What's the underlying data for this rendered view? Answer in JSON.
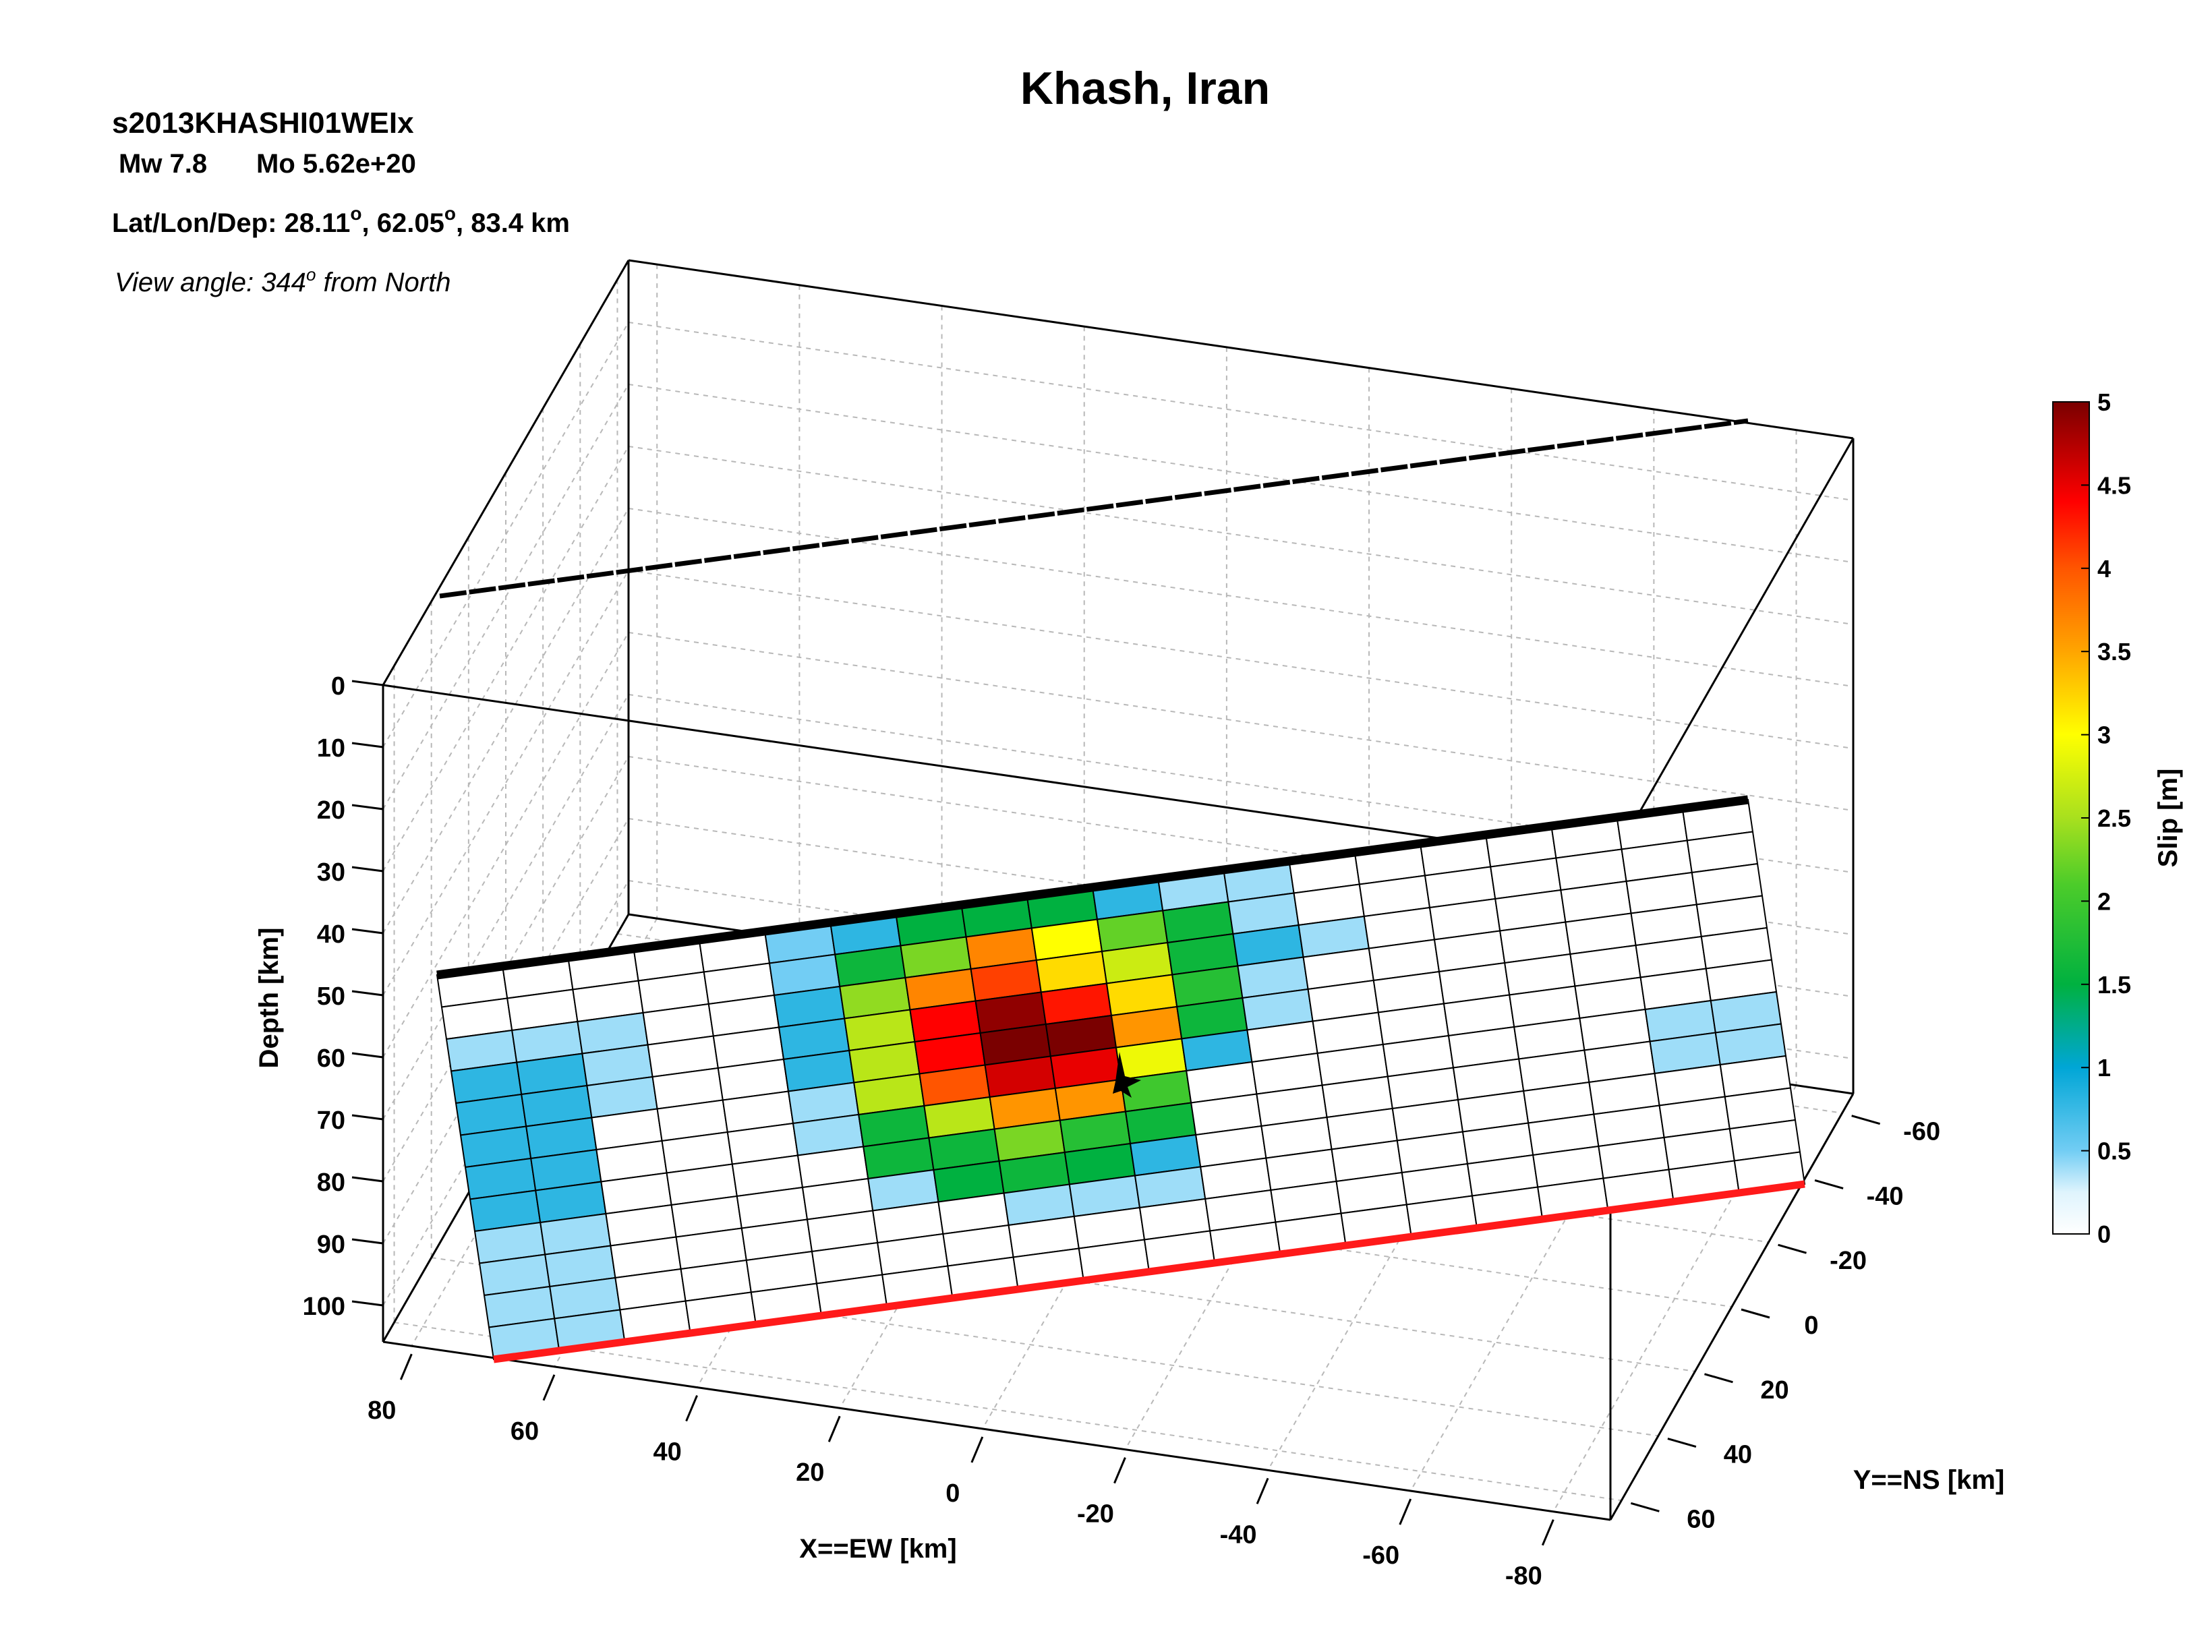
{
  "header": {
    "title": "Khash, Iran",
    "event_id": "s2013KHASHI01WEIx",
    "mw": "Mw 7.8",
    "mo": "Mo 5.62e+20",
    "latlon_prefix": "Lat/Lon/Dep: 28.11",
    "latlon_mid": ", 62.05",
    "latlon_suffix": ", 83.4 km",
    "degree": "o",
    "view_prefix": "View angle: 344",
    "view_suffix": " from North"
  },
  "chart_data": {
    "type": "heatmap",
    "title": "Khash, Iran",
    "z_label": "Depth [km]",
    "x_label": "X==EW [km]",
    "y_label": "Y==NS [km]",
    "colorbar_label": "Slip [m]",
    "depth_ticks": [
      "0",
      "10",
      "20",
      "30",
      "40",
      "50",
      "60",
      "70",
      "80",
      "90",
      "100"
    ],
    "ew_ticks": [
      "80",
      "60",
      "40",
      "20",
      "0",
      "-20",
      "-40",
      "-60",
      "-80"
    ],
    "ns_ticks": [
      "-60",
      "-40",
      "-20",
      "0",
      "20",
      "40",
      "60"
    ],
    "colorbar_ticks": [
      "0",
      "0.5",
      "1",
      "1.5",
      "2",
      "2.5",
      "3",
      "3.5",
      "4",
      "4.5",
      "5"
    ],
    "slip_range": [
      0,
      5
    ],
    "colors": {
      "fault_top": "#000000",
      "fault_bottom": "#ff1a1a",
      "grid": "#b8b8b8",
      "cell_edge": "#000000"
    },
    "slip_grid": [
      [
        0,
        0,
        0,
        0,
        0,
        0.5,
        0.8,
        1.5,
        1.5,
        1.5,
        0.8,
        0.4,
        0.4,
        0,
        0,
        0,
        0,
        0,
        0,
        0
      ],
      [
        0,
        0,
        0,
        0,
        0,
        0.5,
        1.6,
        2.3,
        3.7,
        3.0,
        2.2,
        1.6,
        0.4,
        0,
        0,
        0,
        0,
        0,
        0,
        0
      ],
      [
        0.4,
        0.4,
        0.4,
        0,
        0,
        0.8,
        2.4,
        3.7,
        4.1,
        3.2,
        2.7,
        1.6,
        0.8,
        0.4,
        0,
        0,
        0,
        0,
        0,
        0
      ],
      [
        0.8,
        0.8,
        0.4,
        0,
        0,
        0.8,
        2.6,
        4.4,
        4.9,
        4.3,
        3.2,
        1.8,
        0.4,
        0,
        0,
        0,
        0,
        0,
        0,
        0
      ],
      [
        0.8,
        0.8,
        0.4,
        0,
        0,
        0.8,
        2.6,
        4.4,
        5.0,
        5.0,
        3.6,
        1.6,
        0.4,
        0,
        0,
        0,
        0,
        0,
        0,
        0
      ],
      [
        0.8,
        0.8,
        0,
        0,
        0,
        0.4,
        2.6,
        4.0,
        4.6,
        4.5,
        2.9,
        0.8,
        0,
        0,
        0,
        0,
        0,
        0,
        0,
        0
      ],
      [
        0.8,
        0.8,
        0,
        0,
        0,
        0.4,
        1.6,
        2.6,
        3.6,
        3.6,
        2.0,
        0,
        0,
        0,
        0,
        0,
        0,
        0,
        0.4,
        0.4
      ],
      [
        0.8,
        0.8,
        0,
        0,
        0,
        0,
        1.6,
        1.6,
        2.3,
        1.8,
        1.6,
        0,
        0,
        0,
        0,
        0,
        0,
        0,
        0.4,
        0.4
      ],
      [
        0.4,
        0.4,
        0,
        0,
        0,
        0,
        0.4,
        1.5,
        1.6,
        1.5,
        0.8,
        0,
        0,
        0,
        0,
        0,
        0,
        0,
        0,
        0
      ],
      [
        0.4,
        0.4,
        0,
        0,
        0,
        0,
        0,
        0,
        0.4,
        0.4,
        0.4,
        0,
        0,
        0,
        0,
        0,
        0,
        0,
        0,
        0
      ],
      [
        0.4,
        0.4,
        0,
        0,
        0,
        0,
        0,
        0,
        0,
        0,
        0,
        0,
        0,
        0,
        0,
        0,
        0,
        0,
        0,
        0
      ],
      [
        0.4,
        0.4,
        0,
        0,
        0,
        0,
        0,
        0,
        0,
        0,
        0,
        0,
        0,
        0,
        0,
        0,
        0,
        0,
        0,
        0
      ]
    ]
  }
}
